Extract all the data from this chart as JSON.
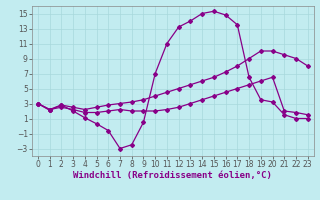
{
  "xlabel": "Windchill (Refroidissement éolien,°C)",
  "background_color": "#c2ecf0",
  "grid_color": "#a8d8dc",
  "line_color": "#880088",
  "xlim": [
    -0.5,
    23.5
  ],
  "ylim": [
    -4,
    16
  ],
  "xticks": [
    0,
    1,
    2,
    3,
    4,
    5,
    6,
    7,
    8,
    9,
    10,
    11,
    12,
    13,
    14,
    15,
    16,
    17,
    18,
    19,
    20,
    21,
    22,
    23
  ],
  "yticks": [
    -3,
    -1,
    1,
    3,
    5,
    7,
    9,
    11,
    13,
    15
  ],
  "curve1_x": [
    0,
    1,
    2,
    3,
    4,
    5,
    6,
    7,
    8,
    9,
    10,
    11,
    12,
    13,
    14,
    15,
    16,
    17,
    18,
    19,
    20,
    21,
    22,
    23
  ],
  "curve1_y": [
    3,
    2.1,
    2.8,
    2.0,
    1.1,
    0.3,
    -0.6,
    -3.0,
    -2.5,
    0.5,
    7.0,
    11.0,
    13.2,
    14.0,
    15.0,
    15.3,
    14.8,
    13.5,
    6.5,
    3.5,
    3.2,
    1.5,
    1.0,
    1.0
  ],
  "curve2_x": [
    0,
    1,
    2,
    3,
    4,
    5,
    6,
    7,
    8,
    9,
    10,
    11,
    12,
    13,
    14,
    15,
    16,
    17,
    18,
    19,
    20,
    21,
    22,
    23
  ],
  "curve2_y": [
    3.0,
    2.2,
    2.8,
    2.5,
    2.2,
    2.5,
    2.8,
    3.0,
    3.2,
    3.5,
    4.0,
    4.5,
    5.0,
    5.5,
    6.0,
    6.5,
    7.2,
    8.0,
    9.0,
    10.0,
    10.0,
    9.5,
    9.0,
    8.0
  ],
  "curve3_x": [
    0,
    1,
    2,
    3,
    4,
    5,
    6,
    7,
    8,
    9,
    10,
    11,
    12,
    13,
    14,
    15,
    16,
    17,
    18,
    19,
    20,
    21,
    22,
    23
  ],
  "curve3_y": [
    3.0,
    2.2,
    2.5,
    2.2,
    1.8,
    1.8,
    2.0,
    2.2,
    2.0,
    2.0,
    2.0,
    2.2,
    2.5,
    3.0,
    3.5,
    4.0,
    4.5,
    5.0,
    5.5,
    6.0,
    6.5,
    2.0,
    1.8,
    1.5
  ],
  "marker": "D",
  "markersize": 2.0,
  "linewidth": 0.9,
  "xlabel_fontsize": 6.5,
  "tick_fontsize": 5.5
}
